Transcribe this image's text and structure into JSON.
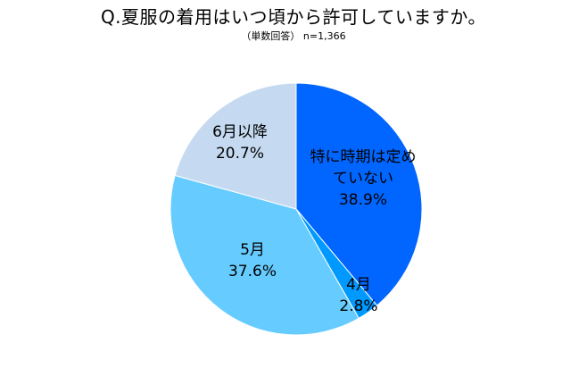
{
  "chart_data": {
    "type": "pie",
    "title": "Q.夏服の着用はいつ頃から許可していますか。",
    "subtitle": "（単数回答） n=1,366",
    "slices": [
      {
        "label_lines": [
          "特に時期は定め",
          "ていない"
        ],
        "value": 38.9,
        "value_label": "38.9%",
        "color": "#0066ff"
      },
      {
        "label_lines": [
          "4月"
        ],
        "value": 2.8,
        "value_label": "2.8%",
        "color": "#0099ff"
      },
      {
        "label_lines": [
          "5月"
        ],
        "value": 37.6,
        "value_label": "37.6%",
        "color": "#66ccff"
      },
      {
        "label_lines": [
          "6月以降"
        ],
        "value": 20.7,
        "value_label": "20.7%",
        "color": "#c5d9f1"
      }
    ],
    "start_angle": "12 o'clock",
    "direction": "clockwise",
    "legend": "none"
  }
}
